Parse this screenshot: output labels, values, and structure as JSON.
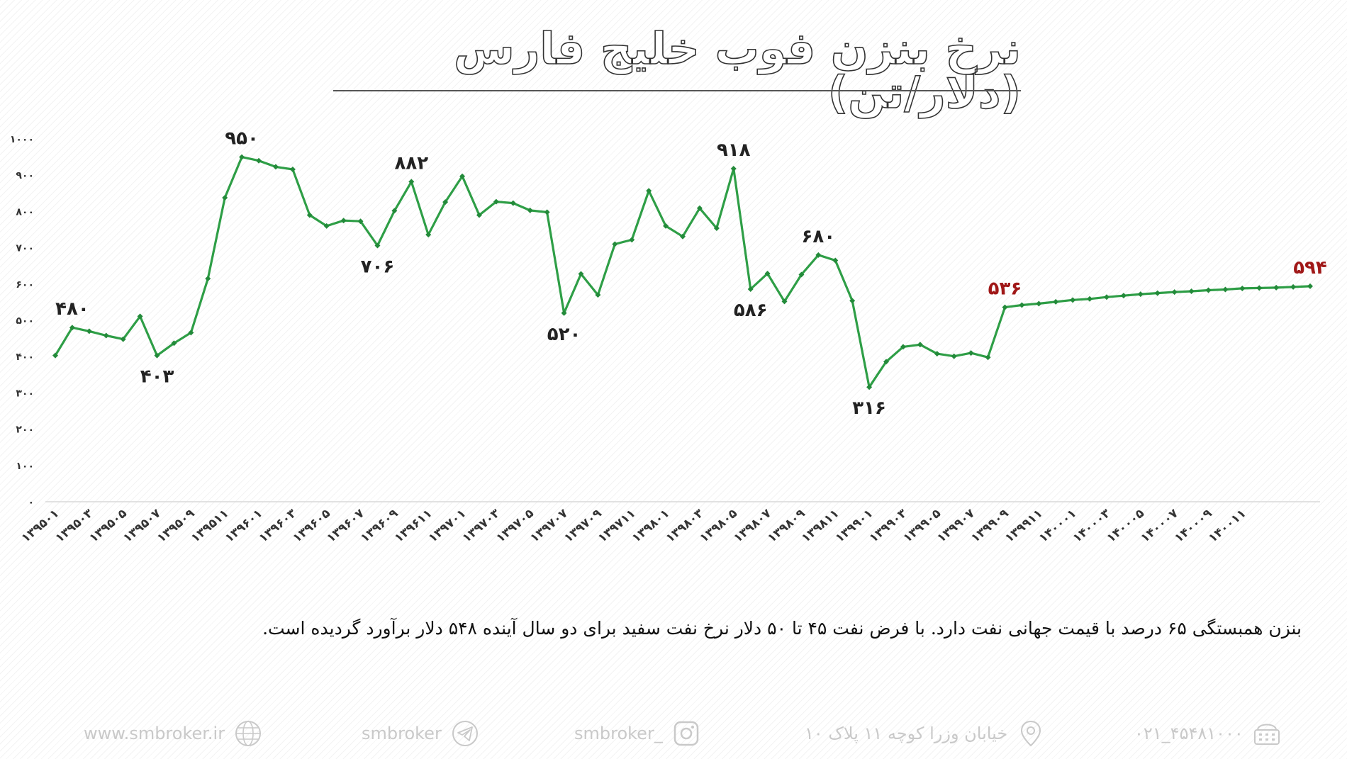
{
  "chart_data": {
    "type": "line",
    "title": "نرخ بنزن فوب خلیج فارس (دلار/تن)",
    "ylim": [
      0,
      1000
    ],
    "yticks": [
      "۰",
      "۱۰۰",
      "۲۰۰",
      "۳۰۰",
      "۴۰۰",
      "۵۰۰",
      "۶۰۰",
      "۷۰۰",
      "۸۰۰",
      "۹۰۰",
      "۱۰۰۰"
    ],
    "xtick_labels": [
      "۱۳۹۵۰۱",
      "۱۳۹۵۰۳",
      "۱۳۹۵۰۵",
      "۱۳۹۵۰۷",
      "۱۳۹۵۰۹",
      "۱۳۹۵۱۱",
      "۱۳۹۶۰۱",
      "۱۳۹۶۰۳",
      "۱۳۹۶۰۵",
      "۱۳۹۶۰۷",
      "۱۳۹۶۰۹",
      "۱۳۹۶۱۱",
      "۱۳۹۷۰۱",
      "۱۳۹۷۰۳",
      "۱۳۹۷۰۵",
      "۱۳۹۷۰۷",
      "۱۳۹۷۰۹",
      "۱۳۹۷۱۱",
      "۱۳۹۸۰۱",
      "۱۳۹۸۰۳",
      "۱۳۹۸۰۵",
      "۱۳۹۸۰۷",
      "۱۳۹۸۰۹",
      "۱۳۹۸۱۱",
      "۱۳۹۹۰۱",
      "۱۳۹۹۰۳",
      "۱۳۹۹۰۵",
      "۱۳۹۹۰۷",
      "۱۳۹۹۰۹",
      "۱۳۹۹۱۱",
      "۱۴۰۰۰۱",
      "۱۴۰۰۰۳",
      "۱۴۰۰۰۵",
      "۱۴۰۰۰۷",
      "۱۴۰۰۰۹",
      "۱۴۰۰۱۱"
    ],
    "series": [
      {
        "color": "#2e9e46",
        "values": [
          403,
          480,
          470,
          458,
          448,
          511,
          403,
          437,
          466,
          615,
          838,
          950,
          940,
          923,
          916,
          790,
          760,
          775,
          773,
          706,
          802,
          882,
          736,
          826,
          897,
          790,
          827,
          823,
          803,
          798,
          520,
          628,
          570,
          710,
          722,
          857,
          760,
          731,
          809,
          754,
          918,
          586,
          629,
          552,
          626,
          680,
          665,
          554,
          316,
          386,
          427,
          433,
          408,
          401,
          410,
          398,
          536,
          542,
          546,
          551,
          556,
          559,
          564,
          568,
          572,
          575,
          578,
          580,
          583,
          585,
          588,
          589,
          590,
          592,
          594
        ]
      }
    ],
    "data_labels": [
      {
        "index": 1,
        "text": "۴۸۰",
        "color": "#222222",
        "pos": "above"
      },
      {
        "index": 6,
        "text": "۴۰۳",
        "color": "#222222",
        "pos": "below"
      },
      {
        "index": 11,
        "text": "۹۵۰",
        "color": "#222222",
        "pos": "above"
      },
      {
        "index": 19,
        "text": "۷۰۶",
        "color": "#222222",
        "pos": "below"
      },
      {
        "index": 21,
        "text": "۸۸۲",
        "color": "#222222",
        "pos": "above"
      },
      {
        "index": 30,
        "text": "۵۲۰",
        "color": "#222222",
        "pos": "below"
      },
      {
        "index": 40,
        "text": "۹۱۸",
        "color": "#222222",
        "pos": "above"
      },
      {
        "index": 41,
        "text": "۵۸۶",
        "color": "#222222",
        "pos": "below"
      },
      {
        "index": 45,
        "text": "۶۸۰",
        "color": "#222222",
        "pos": "above"
      },
      {
        "index": 48,
        "text": "۳۱۶",
        "color": "#222222",
        "pos": "below"
      },
      {
        "index": 56,
        "text": "۵۳۶",
        "color": "#a01818",
        "pos": "above"
      },
      {
        "index": 74,
        "text": "۵۹۴",
        "color": "#a01818",
        "pos": "above"
      }
    ],
    "grid": false,
    "legend": "none"
  },
  "note": "بنزن همبستگی ۶۵ درصد با قیمت جهانی نفت دارد. با فرض نفت  ۴۵ تا ۵۰ دلار نرخ نفت سفید برای دو سال آینده ۵۴۸  دلار برآورد گردیده است.",
  "footer": {
    "phone": "۰۲۱_۴۵۴۸۱۰۰۰",
    "address": "خیابان وزرا کوچه ۱۱ پلاک ۱۰",
    "instagram": "smbroker_",
    "telegram": "smbroker",
    "website": "www.smbroker.ir"
  },
  "colors": {
    "line": "#2e9e46",
    "highlight_label": "#a01818",
    "footer_text": "#c9c9c9"
  }
}
